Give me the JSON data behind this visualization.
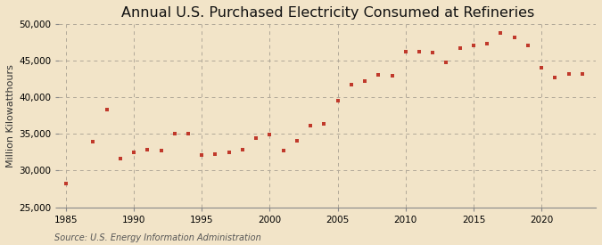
{
  "title": "Annual U.S. Purchased Electricity Consumed at Refineries",
  "ylabel": "Million Kilowatthours",
  "source": "Source: U.S. Energy Information Administration",
  "background_color": "#f2e4c8",
  "marker_color": "#c0392b",
  "years": [
    1985,
    1987,
    1988,
    1989,
    1990,
    1991,
    1992,
    1993,
    1994,
    1995,
    1996,
    1997,
    1998,
    1999,
    2000,
    2001,
    2002,
    2003,
    2004,
    2005,
    2006,
    2007,
    2008,
    2009,
    2010,
    2011,
    2012,
    2013,
    2014,
    2015,
    2016,
    2017,
    2018,
    2019,
    2020,
    2021,
    2022,
    2023
  ],
  "values": [
    28200,
    34000,
    38400,
    31700,
    32500,
    32800,
    32700,
    35000,
    35100,
    32100,
    32300,
    32500,
    32800,
    34400,
    34900,
    32700,
    34100,
    36200,
    36400,
    39500,
    41800,
    42200,
    43100,
    43000,
    46300,
    46300,
    46100,
    44800,
    46800,
    47100,
    47300,
    48800,
    48200,
    47100,
    44100,
    42700,
    43200,
    43200
  ],
  "ylim": [
    25000,
    50000
  ],
  "xlim": [
    1984.5,
    2024
  ],
  "yticks": [
    25000,
    30000,
    35000,
    40000,
    45000,
    50000
  ],
  "xticks": [
    1985,
    1990,
    1995,
    2000,
    2005,
    2010,
    2015,
    2020
  ],
  "grid_color": "#b0a898",
  "title_fontsize": 11.5,
  "label_fontsize": 8,
  "tick_fontsize": 7.5,
  "source_fontsize": 7
}
